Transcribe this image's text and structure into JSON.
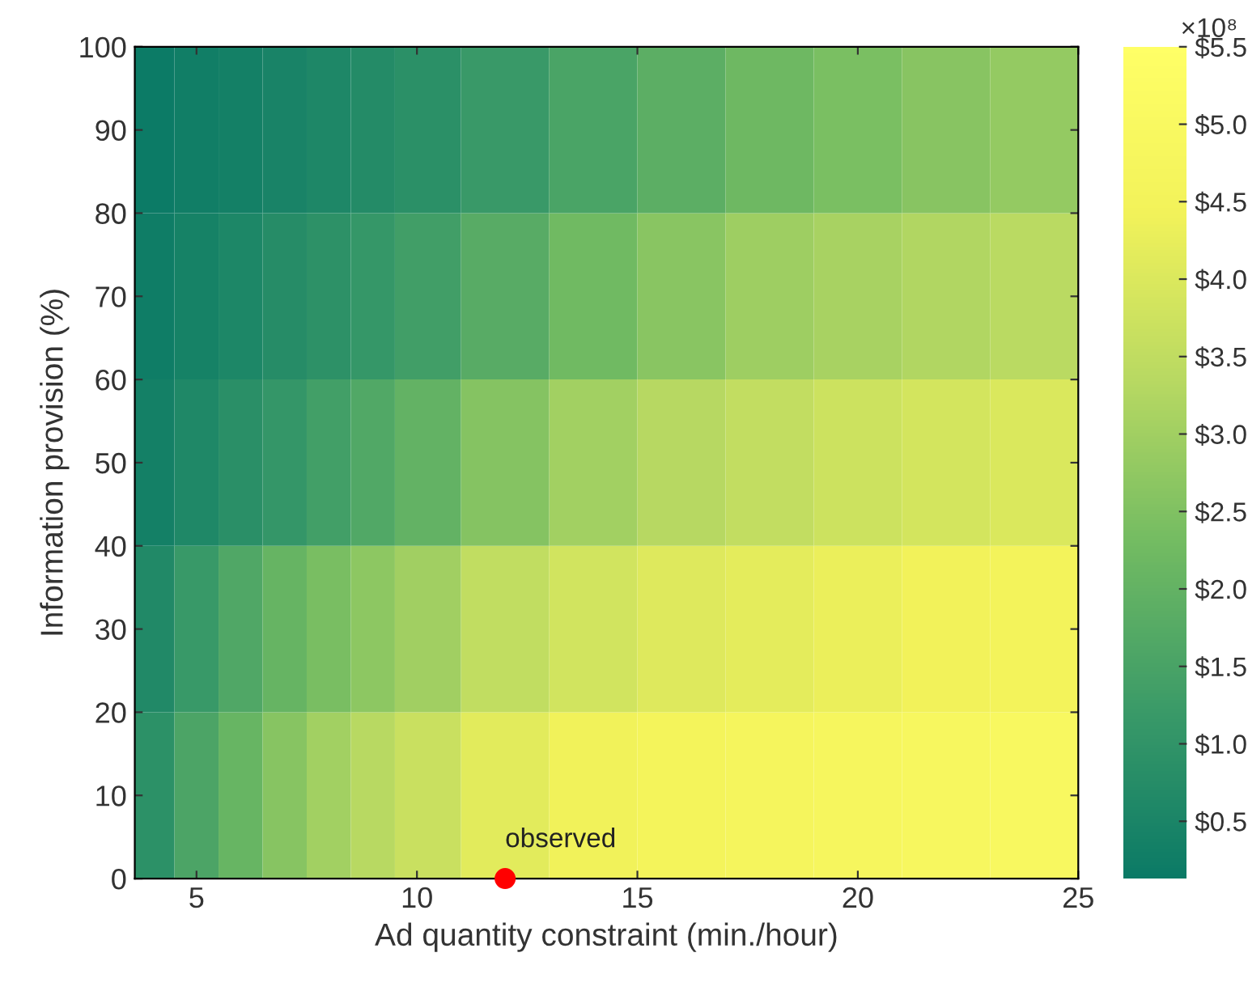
{
  "chart_data": {
    "type": "heatmap",
    "xlabel": "Ad quantity constraint (min./hour)",
    "ylabel": "Information provision (%)",
    "x": [
      4,
      5,
      6,
      7,
      8,
      9,
      10,
      12,
      14,
      16,
      18,
      20,
      22,
      24
    ],
    "y": [
      10,
      30,
      50,
      70,
      90
    ],
    "cells": [
      [
        0.9,
        1.54,
        2.08,
        2.6,
        3.02,
        3.36,
        3.67,
        4.13,
        4.4,
        4.54,
        4.65,
        4.76,
        4.86,
        4.94
      ],
      [
        0.64,
        1.17,
        1.63,
        2.04,
        2.39,
        2.7,
        3.0,
        3.51,
        3.82,
        4.04,
        4.17,
        4.3,
        4.41,
        4.48
      ],
      [
        0.35,
        0.61,
        0.85,
        1.08,
        1.36,
        1.66,
        1.98,
        2.58,
        3.02,
        3.33,
        3.53,
        3.72,
        3.85,
        3.98
      ],
      [
        0.23,
        0.4,
        0.57,
        0.74,
        0.92,
        1.1,
        1.33,
        1.78,
        2.23,
        2.63,
        2.96,
        3.1,
        3.24,
        3.4
      ],
      [
        0.17,
        0.26,
        0.36,
        0.46,
        0.58,
        0.71,
        0.88,
        1.18,
        1.52,
        1.87,
        2.19,
        2.41,
        2.62,
        2.8
      ]
    ],
    "colors": [
      "#0b7a66",
      "#3a9a68",
      "#72bb62",
      "#b8d962",
      "#f2f25a",
      "#ffff66"
    ],
    "clim": [
      0.13,
      5.5
    ],
    "cticks": [
      {
        "value": 0.5,
        "label": "$0.5"
      },
      {
        "value": 1.0,
        "label": "$1.0"
      },
      {
        "value": 1.5,
        "label": "$1.5"
      },
      {
        "value": 2.0,
        "label": "$2.0"
      },
      {
        "value": 2.5,
        "label": "$2.5"
      },
      {
        "value": 3.0,
        "label": "$3.0"
      },
      {
        "value": 3.5,
        "label": "$3.5"
      },
      {
        "value": 4.0,
        "label": "$4.0"
      },
      {
        "value": 4.5,
        "label": "$4.5"
      },
      {
        "value": 5.0,
        "label": "$5.0"
      },
      {
        "value": 5.5,
        "label": "$5.5"
      }
    ],
    "clabel": "×10⁸",
    "xlim": [
      3.6,
      25
    ],
    "xticks": [
      5,
      10,
      15,
      20,
      25
    ],
    "ylim": [
      0,
      100
    ],
    "yticks": [
      0,
      10,
      20,
      30,
      40,
      50,
      60,
      70,
      80,
      90,
      100
    ],
    "series": [
      {
        "type": "scatter",
        "x": [
          12
        ],
        "values": [
          0
        ],
        "color": "#ff0000"
      }
    ],
    "annotations": [
      {
        "text": "observed",
        "x": 12,
        "y": 0
      }
    ],
    "grid": false
  }
}
